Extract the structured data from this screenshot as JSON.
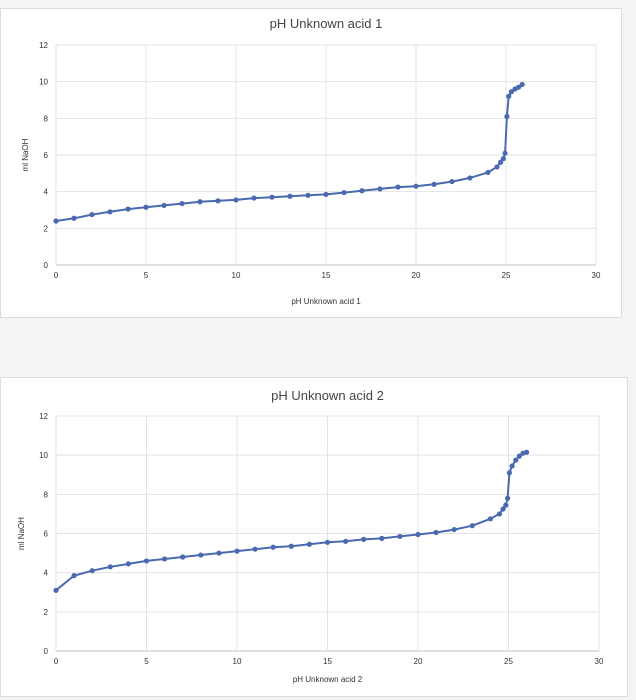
{
  "chart_data": [
    {
      "type": "line",
      "title": "pH Unknown acid 1",
      "xlabel": "pH Unknown acid 1",
      "ylabel": "ml NaOH",
      "xlim": [
        0,
        30
      ],
      "ylim": [
        0,
        12
      ],
      "xticks": [
        "0",
        "5",
        "10",
        "15",
        "20",
        "25",
        "30"
      ],
      "yticks": [
        "0",
        "2",
        "4",
        "6",
        "8",
        "10",
        "12"
      ],
      "grid": true,
      "legend": "none",
      "color": "#4a69b0",
      "series": [
        {
          "x": [
            0,
            1,
            2,
            3,
            4,
            5,
            6,
            7,
            8,
            9,
            10,
            11,
            12,
            13,
            14,
            15,
            16,
            17,
            18,
            19,
            20,
            21,
            22,
            23,
            24,
            24.5,
            24.7,
            24.85,
            24.95,
            25.05,
            25.15,
            25.3,
            25.5,
            25.7,
            25.9
          ],
          "y": [
            2.4,
            2.55,
            2.75,
            2.9,
            3.05,
            3.15,
            3.25,
            3.35,
            3.45,
            3.5,
            3.55,
            3.65,
            3.7,
            3.75,
            3.8,
            3.85,
            3.95,
            4.05,
            4.15,
            4.25,
            4.3,
            4.4,
            4.55,
            4.75,
            5.05,
            5.35,
            5.6,
            5.8,
            6.1,
            8.1,
            9.2,
            9.45,
            9.6,
            9.7,
            9.85
          ]
        }
      ]
    },
    {
      "type": "line",
      "title": "pH Unknown acid 2",
      "xlabel": "pH Unknown acid 2",
      "ylabel": "ml NaOH",
      "xlim": [
        0,
        30
      ],
      "ylim": [
        0,
        12
      ],
      "xticks": [
        "0",
        "5",
        "10",
        "15",
        "20",
        "25",
        "30"
      ],
      "yticks": [
        "0",
        "2",
        "4",
        "6",
        "8",
        "10",
        "12"
      ],
      "grid": true,
      "legend": "none",
      "color": "#4a69b0",
      "series": [
        {
          "x": [
            0,
            1,
            2,
            3,
            4,
            5,
            6,
            7,
            8,
            9,
            10,
            11,
            12,
            13,
            14,
            15,
            16,
            17,
            18,
            19,
            20,
            21,
            22,
            23,
            24,
            24.5,
            24.7,
            24.85,
            24.95,
            25.05,
            25.2,
            25.4,
            25.6,
            25.8,
            26.0
          ],
          "y": [
            3.1,
            3.85,
            4.1,
            4.3,
            4.45,
            4.6,
            4.7,
            4.8,
            4.9,
            5.0,
            5.1,
            5.2,
            5.3,
            5.35,
            5.45,
            5.55,
            5.6,
            5.7,
            5.75,
            5.85,
            5.95,
            6.05,
            6.2,
            6.4,
            6.75,
            7.0,
            7.25,
            7.45,
            7.8,
            9.1,
            9.45,
            9.75,
            9.95,
            10.1,
            10.15
          ]
        }
      ]
    }
  ]
}
